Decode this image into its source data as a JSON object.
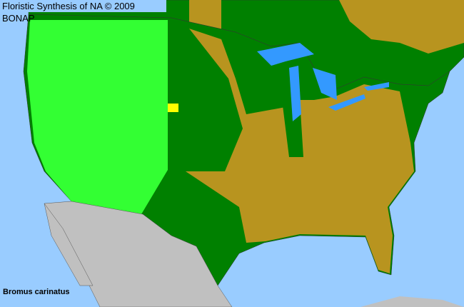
{
  "header": {
    "title": "Floristic Synthesis of NA © 2009 BONAP"
  },
  "map": {
    "species": "Bromus carinatus",
    "colors": {
      "water": "#99ccff",
      "native_state_present": "#008000",
      "native_county_present": "#33ff33",
      "not_present": "#b8941f",
      "rare": "#ffff00",
      "outside_region": "#c0c0c0"
    }
  }
}
